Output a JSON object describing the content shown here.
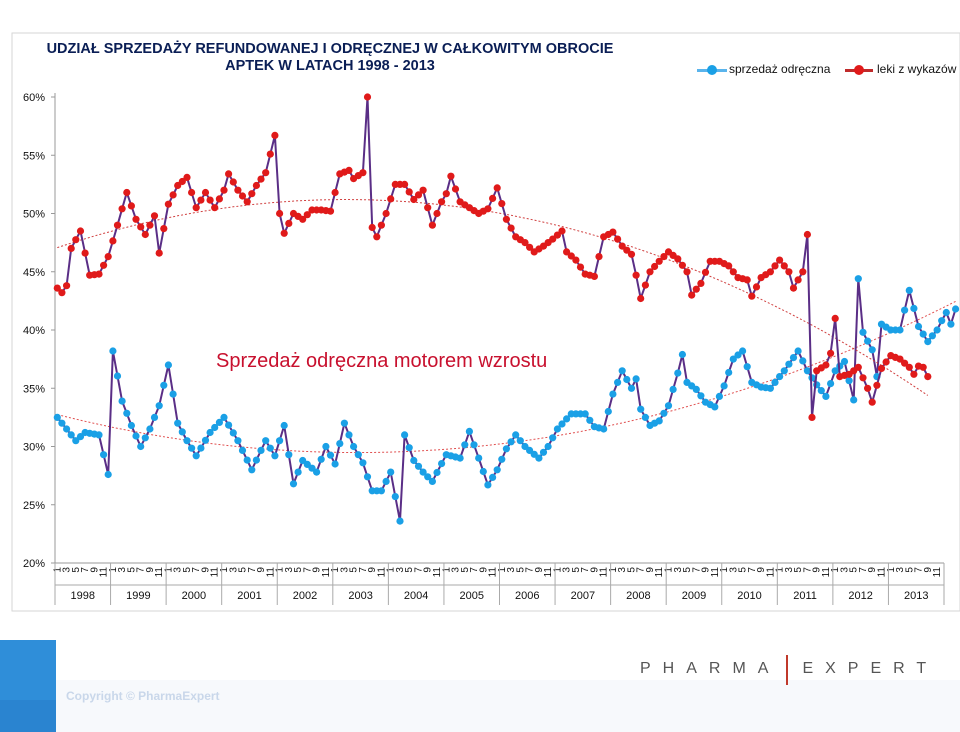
{
  "chart_data": {
    "type": "line",
    "title_line1": "UDZIAŁ SPRZEDAŻY REFUNDOWANEJ I ODRĘCZNEJ W CAŁKOWITYM OBROCIE",
    "title_line2": "APTEK W LATACH 1998 - 2013",
    "annotation": "Sprzedaż odręczna motorem wzrostu",
    "y_ticks": [
      "20%",
      "25%",
      "30%",
      "35%",
      "40%",
      "45%",
      "50%",
      "55%",
      "60%"
    ],
    "ylim": [
      20,
      60
    ],
    "month_ticks": [
      "1",
      "3",
      "5",
      "7",
      "9",
      "11"
    ],
    "years": [
      "1998",
      "1999",
      "2000",
      "2001",
      "2002",
      "2003",
      "2004",
      "2005",
      "2006",
      "2007",
      "2008",
      "2009",
      "2010",
      "2011",
      "2012",
      "2013"
    ],
    "series": [
      {
        "name": "sprzedaż odręczna",
        "color": "#1aa0e6",
        "line_color": "#5a2e86",
        "anchors": [
          [
            0,
            32.5
          ],
          [
            2,
            31.5
          ],
          [
            4,
            30.5
          ],
          [
            6,
            31.2
          ],
          [
            9,
            31.0
          ],
          [
            11,
            27.6
          ],
          [
            12,
            38.2
          ],
          [
            14,
            33.9
          ],
          [
            16,
            31.8
          ],
          [
            18,
            30.0
          ],
          [
            20,
            31.5
          ],
          [
            22,
            33.5
          ],
          [
            24,
            37.0
          ],
          [
            26,
            32.0
          ],
          [
            28,
            30.5
          ],
          [
            30,
            29.2
          ],
          [
            33,
            31.2
          ],
          [
            36,
            32.5
          ],
          [
            39,
            30.5
          ],
          [
            42,
            28.0
          ],
          [
            45,
            30.5
          ],
          [
            47,
            29.2
          ],
          [
            49,
            31.8
          ],
          [
            51,
            26.8
          ],
          [
            53,
            28.8
          ],
          [
            56,
            27.8
          ],
          [
            58,
            30.0
          ],
          [
            60,
            28.5
          ],
          [
            62,
            32.0
          ],
          [
            64,
            30.0
          ],
          [
            66,
            28.6
          ],
          [
            68,
            26.2
          ],
          [
            70,
            26.2
          ],
          [
            72,
            27.8
          ],
          [
            74,
            23.6
          ],
          [
            75,
            31.0
          ],
          [
            77,
            28.8
          ],
          [
            79,
            27.8
          ],
          [
            81,
            27.0
          ],
          [
            84,
            29.3
          ],
          [
            87,
            29.0
          ],
          [
            89,
            31.3
          ],
          [
            91,
            29.0
          ],
          [
            93,
            26.7
          ],
          [
            95,
            28.0
          ],
          [
            97,
            29.8
          ],
          [
            99,
            31.0
          ],
          [
            101,
            30.0
          ],
          [
            104,
            29.0
          ],
          [
            106,
            30.0
          ],
          [
            108,
            31.5
          ],
          [
            111,
            32.8
          ],
          [
            114,
            32.8
          ],
          [
            116,
            31.7
          ],
          [
            118,
            31.5
          ],
          [
            120,
            34.5
          ],
          [
            122,
            36.5
          ],
          [
            124,
            35.0
          ],
          [
            125,
            35.8
          ],
          [
            126,
            33.2
          ],
          [
            128,
            31.8
          ],
          [
            130,
            32.2
          ],
          [
            132,
            33.5
          ],
          [
            134,
            36.3
          ],
          [
            135,
            37.9
          ],
          [
            136,
            35.5
          ],
          [
            138,
            34.9
          ],
          [
            140,
            33.8
          ],
          [
            142,
            33.4
          ],
          [
            144,
            35.2
          ],
          [
            146,
            37.5
          ],
          [
            148,
            38.2
          ],
          [
            150,
            35.5
          ],
          [
            152,
            35.1
          ],
          [
            154,
            35.0
          ],
          [
            157,
            36.5
          ],
          [
            160,
            38.2
          ],
          [
            162,
            36.5
          ],
          [
            164,
            35.3
          ],
          [
            166,
            34.3
          ],
          [
            168,
            36.5
          ],
          [
            170,
            37.3
          ],
          [
            172,
            34.0
          ],
          [
            173,
            44.4
          ],
          [
            174,
            39.8
          ],
          [
            176,
            38.3
          ],
          [
            177,
            36.0
          ],
          [
            178,
            40.5
          ],
          [
            180,
            40.0
          ],
          [
            182,
            40.0
          ],
          [
            184,
            43.4
          ],
          [
            186,
            40.3
          ],
          [
            188,
            39.0
          ],
          [
            190,
            40.0
          ],
          [
            191,
            40.8
          ],
          [
            192,
            41.5
          ],
          [
            193,
            40.5
          ],
          [
            194,
            41.8
          ]
        ]
      },
      {
        "name": "leki z wykazów",
        "color": "#e01a1a",
        "line_color": "#5a2e86",
        "anchors": [
          [
            0,
            43.6
          ],
          [
            1,
            43.2
          ],
          [
            2,
            43.8
          ],
          [
            3,
            47.0
          ],
          [
            5,
            48.5
          ],
          [
            7,
            44.7
          ],
          [
            9,
            44.8
          ],
          [
            11,
            46.3
          ],
          [
            13,
            49.0
          ],
          [
            15,
            51.8
          ],
          [
            17,
            49.5
          ],
          [
            19,
            48.2
          ],
          [
            21,
            49.8
          ],
          [
            22,
            46.6
          ],
          [
            24,
            50.8
          ],
          [
            26,
            52.4
          ],
          [
            28,
            53.1
          ],
          [
            30,
            50.5
          ],
          [
            32,
            51.8
          ],
          [
            34,
            50.5
          ],
          [
            36,
            52.0
          ],
          [
            37,
            53.4
          ],
          [
            39,
            52.0
          ],
          [
            41,
            51.0
          ],
          [
            43,
            52.4
          ],
          [
            45,
            53.5
          ],
          [
            47,
            56.7
          ],
          [
            48,
            50.0
          ],
          [
            49,
            48.3
          ],
          [
            51,
            50.0
          ],
          [
            53,
            49.5
          ],
          [
            55,
            50.3
          ],
          [
            57,
            50.3
          ],
          [
            59,
            50.2
          ],
          [
            61,
            53.4
          ],
          [
            63,
            53.7
          ],
          [
            64,
            53.0
          ],
          [
            66,
            53.5
          ],
          [
            67,
            60.0
          ],
          [
            68,
            48.8
          ],
          [
            69,
            48.0
          ],
          [
            71,
            50.0
          ],
          [
            73,
            52.5
          ],
          [
            75,
            52.5
          ],
          [
            77,
            51.2
          ],
          [
            79,
            52.0
          ],
          [
            81,
            49.0
          ],
          [
            83,
            51.0
          ],
          [
            84,
            51.7
          ],
          [
            85,
            53.2
          ],
          [
            87,
            51.0
          ],
          [
            89,
            50.5
          ],
          [
            91,
            50.0
          ],
          [
            93,
            50.4
          ],
          [
            95,
            52.2
          ],
          [
            97,
            49.5
          ],
          [
            99,
            48.0
          ],
          [
            101,
            47.5
          ],
          [
            103,
            46.7
          ],
          [
            105,
            47.2
          ],
          [
            107,
            47.8
          ],
          [
            109,
            48.5
          ],
          [
            110,
            46.7
          ],
          [
            112,
            46.0
          ],
          [
            114,
            44.8
          ],
          [
            116,
            44.6
          ],
          [
            118,
            48.0
          ],
          [
            120,
            48.4
          ],
          [
            122,
            47.2
          ],
          [
            124,
            46.5
          ],
          [
            125,
            44.7
          ],
          [
            126,
            42.7
          ],
          [
            128,
            45.0
          ],
          [
            130,
            45.9
          ],
          [
            132,
            46.7
          ],
          [
            134,
            46.1
          ],
          [
            136,
            45.0
          ],
          [
            137,
            43.0
          ],
          [
            139,
            44.0
          ],
          [
            141,
            45.9
          ],
          [
            143,
            45.9
          ],
          [
            145,
            45.5
          ],
          [
            147,
            44.5
          ],
          [
            149,
            44.3
          ],
          [
            150,
            42.9
          ],
          [
            152,
            44.5
          ],
          [
            154,
            45.0
          ],
          [
            156,
            46.0
          ],
          [
            158,
            45.0
          ],
          [
            159,
            43.6
          ],
          [
            161,
            45.0
          ],
          [
            162,
            48.2
          ],
          [
            163,
            32.5
          ],
          [
            164,
            36.5
          ],
          [
            166,
            37.0
          ],
          [
            167,
            38.0
          ],
          [
            168,
            41.0
          ],
          [
            169,
            36.0
          ],
          [
            171,
            36.2
          ],
          [
            173,
            36.8
          ],
          [
            175,
            35.0
          ],
          [
            176,
            33.8
          ],
          [
            178,
            36.7
          ],
          [
            180,
            37.8
          ],
          [
            182,
            37.5
          ],
          [
            184,
            36.8
          ],
          [
            185,
            36.2
          ],
          [
            186,
            36.9
          ],
          [
            187,
            36.8
          ],
          [
            188,
            36.0
          ]
        ]
      }
    ],
    "trend_line": "polynomial",
    "legend_position": "top-right"
  },
  "branding": {
    "company_left": "PHARMA",
    "company_right": "EXPERT",
    "copyright": "Copyright © PharmaExpert"
  }
}
